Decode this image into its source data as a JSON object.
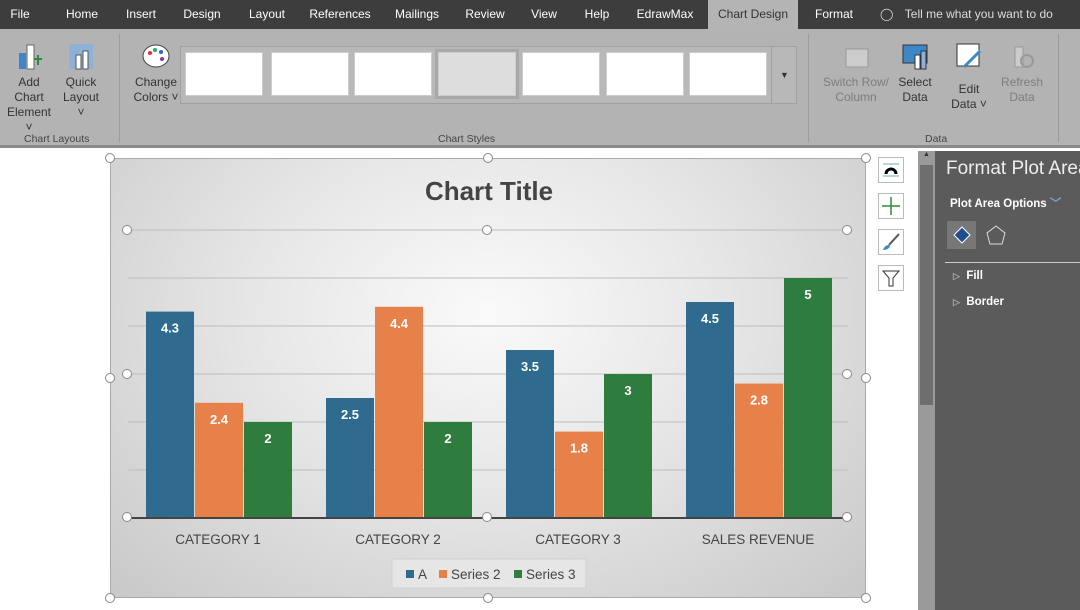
{
  "tabs": [
    "File",
    "Home",
    "Insert",
    "Design",
    "Layout",
    "References",
    "Mailings",
    "Review",
    "View",
    "Help",
    "EdrawMax",
    "Chart Design",
    "Format"
  ],
  "tell_me": "Tell me what you want to do",
  "ribbon": {
    "add_chart_element": [
      "Add Chart",
      "Element ˅"
    ],
    "quick_layout": [
      "Quick",
      "Layout ˅"
    ],
    "change_colors": [
      "Change",
      "Colors ˅"
    ],
    "switch_row_column": [
      "Switch Row/",
      "Column"
    ],
    "select_data": [
      "Select",
      "Data"
    ],
    "edit_data": [
      "Edit",
      "Data ˅"
    ],
    "refresh_data": [
      "Refresh",
      "Data"
    ],
    "groups": {
      "chart_layouts": "Chart Layouts",
      "chart_styles": "Chart Styles",
      "data": "Data"
    }
  },
  "pane": {
    "title": "Format Plot Area",
    "options": "Plot Area Options",
    "sections": [
      "Fill",
      "Border"
    ]
  },
  "chart_data": {
    "type": "bar",
    "title": "Chart Title",
    "categories": [
      "CATEGORY 1",
      "CATEGORY 2",
      "CATEGORY 3",
      "SALES REVENUE"
    ],
    "series": [
      {
        "name": "A",
        "color": "#2e6b8e",
        "values": [
          4.3,
          2.5,
          3.5,
          4.5
        ]
      },
      {
        "name": "Series 2",
        "color": "#e8804a",
        "values": [
          2.4,
          4.4,
          1.8,
          2.8
        ]
      },
      {
        "name": "Series 3",
        "color": "#2f7d3e",
        "values": [
          2,
          2,
          3,
          5
        ]
      }
    ],
    "ylim": [
      0,
      6
    ],
    "grid": true,
    "data_labels": true,
    "legend": "bottom"
  }
}
